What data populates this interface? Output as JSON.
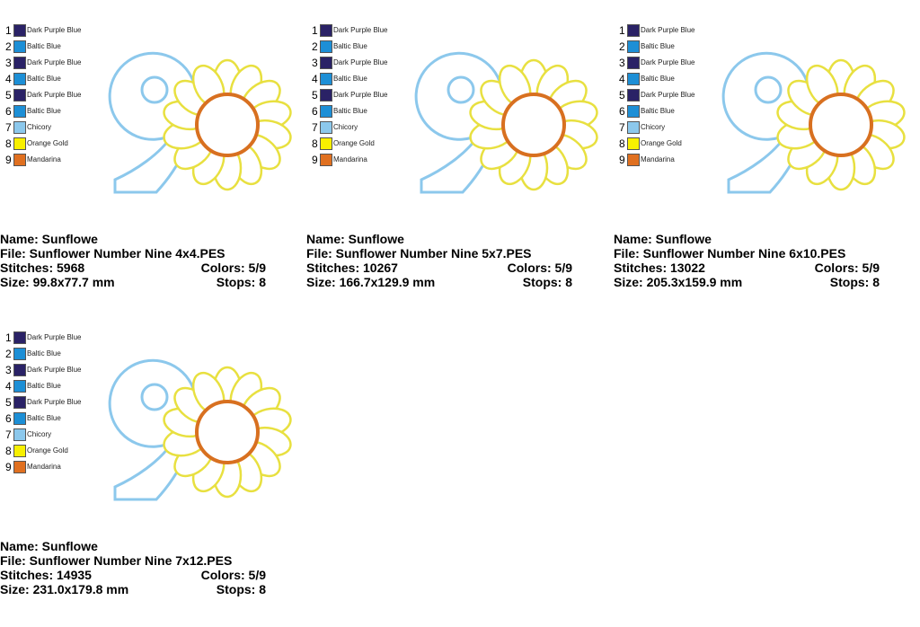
{
  "designs": [
    {
      "colors": [
        {
          "number": "1",
          "name": "Dark Purple Blue",
          "color": "#2a2266"
        },
        {
          "number": "2",
          "name": "Baltic Blue",
          "color": "#1d8fd6"
        },
        {
          "number": "3",
          "name": "Dark Purple Blue",
          "color": "#2a2266"
        },
        {
          "number": "4",
          "name": "Baltic Blue",
          "color": "#1d8fd6"
        },
        {
          "number": "5",
          "name": "Dark Purple Blue",
          "color": "#2a2266"
        },
        {
          "number": "6",
          "name": "Baltic Blue",
          "color": "#1d8fd6"
        },
        {
          "number": "7",
          "name": "Chicory",
          "color": "#8cc8ec"
        },
        {
          "number": "8",
          "name": "Orange Gold",
          "color": "#f8f000"
        },
        {
          "number": "9",
          "name": "Mandarina",
          "color": "#e07020"
        }
      ],
      "name": "Name: Sunflowe",
      "file": "File: Sunflower Number Nine 4x4.PES",
      "stitches": "Stitches: 5968",
      "colors_count": "Colors: 5/9",
      "size": "Size: 99.8x77.7 mm",
      "stops": "Stops: 8"
    },
    {
      "colors": [
        {
          "number": "1",
          "name": "Dark Purple Blue",
          "color": "#2a2266"
        },
        {
          "number": "2",
          "name": "Baltic Blue",
          "color": "#1d8fd6"
        },
        {
          "number": "3",
          "name": "Dark Purple Blue",
          "color": "#2a2266"
        },
        {
          "number": "4",
          "name": "Baltic Blue",
          "color": "#1d8fd6"
        },
        {
          "number": "5",
          "name": "Dark Purple Blue",
          "color": "#2a2266"
        },
        {
          "number": "6",
          "name": "Baltic Blue",
          "color": "#1d8fd6"
        },
        {
          "number": "7",
          "name": "Chicory",
          "color": "#8cc8ec"
        },
        {
          "number": "8",
          "name": "Orange Gold",
          "color": "#f8f000"
        },
        {
          "number": "9",
          "name": "Mandarina",
          "color": "#e07020"
        }
      ],
      "name": "Name: Sunflowe",
      "file": "File: Sunflower Number Nine 5x7.PES",
      "stitches": "Stitches: 10267",
      "colors_count": "Colors: 5/9",
      "size": "Size: 166.7x129.9 mm",
      "stops": "Stops: 8"
    },
    {
      "colors": [
        {
          "number": "1",
          "name": "Dark Purple Blue",
          "color": "#2a2266"
        },
        {
          "number": "2",
          "name": "Baltic Blue",
          "color": "#1d8fd6"
        },
        {
          "number": "3",
          "name": "Dark Purple Blue",
          "color": "#2a2266"
        },
        {
          "number": "4",
          "name": "Baltic Blue",
          "color": "#1d8fd6"
        },
        {
          "number": "5",
          "name": "Dark Purple Blue",
          "color": "#2a2266"
        },
        {
          "number": "6",
          "name": "Baltic Blue",
          "color": "#1d8fd6"
        },
        {
          "number": "7",
          "name": "Chicory",
          "color": "#8cc8ec"
        },
        {
          "number": "8",
          "name": "Orange Gold",
          "color": "#f8f000"
        },
        {
          "number": "9",
          "name": "Mandarina",
          "color": "#e07020"
        }
      ],
      "name": "Name: Sunflowe",
      "file": "File: Sunflower Number Nine 6x10.PES",
      "stitches": "Stitches: 13022",
      "colors_count": "Colors: 5/9",
      "size": "Size: 205.3x159.9 mm",
      "stops": "Stops: 8"
    },
    {
      "colors": [
        {
          "number": "1",
          "name": "Dark Purple Blue",
          "color": "#2a2266"
        },
        {
          "number": "2",
          "name": "Baltic Blue",
          "color": "#1d8fd6"
        },
        {
          "number": "3",
          "name": "Dark Purple Blue",
          "color": "#2a2266"
        },
        {
          "number": "4",
          "name": "Baltic Blue",
          "color": "#1d8fd6"
        },
        {
          "number": "5",
          "name": "Dark Purple Blue",
          "color": "#2a2266"
        },
        {
          "number": "6",
          "name": "Baltic Blue",
          "color": "#1d8fd6"
        },
        {
          "number": "7",
          "name": "Chicory",
          "color": "#8cc8ec"
        },
        {
          "number": "8",
          "name": "Orange Gold",
          "color": "#f8f000"
        },
        {
          "number": "9",
          "name": "Mandarina",
          "color": "#e07020"
        }
      ],
      "name": "Name: Sunflowe",
      "file": "File: Sunflower Number Nine 7x12.PES",
      "stitches": "Stitches: 14935",
      "colors_count": "Colors: 5/9",
      "size": "Size: 231.0x179.8 mm",
      "stops": "Stops: 8"
    }
  ]
}
